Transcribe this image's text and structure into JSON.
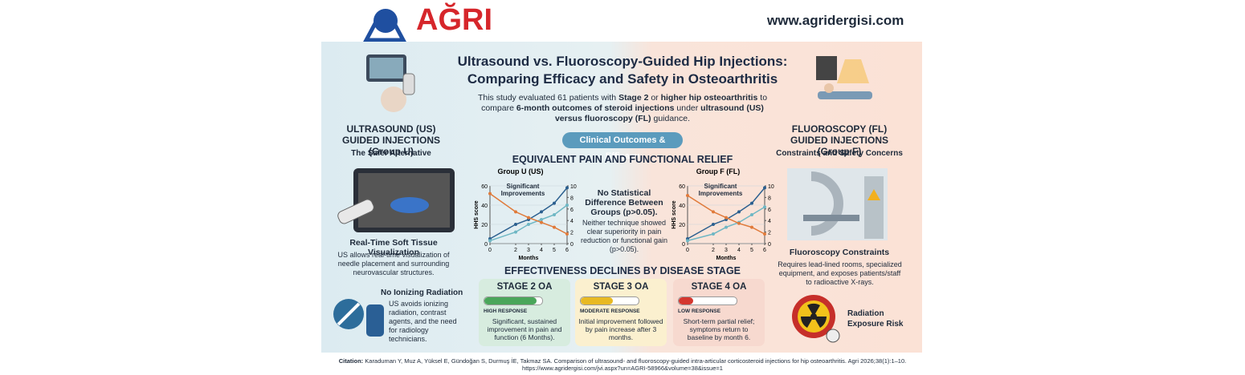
{
  "header": {
    "logo": "AĞRI",
    "url": "www.agridergisi.com"
  },
  "title": [
    "Ultrasound vs. Fluoroscopy-Guided Hip Injections:",
    "Comparing Efficacy and Safety in Osteoarthritis"
  ],
  "intro": [
    "This study evaluated 61 patients with ",
    "Stage 2",
    " or ",
    "higher hip osteoarthritis",
    " to compare ",
    "6-month outcomes of steroid injections",
    " under ",
    "ultrasound (US) versus fluoroscopy (FL)",
    " guidance."
  ],
  "left": {
    "heading": "ULTRASOUND (US) GUIDED INJECTIONS (Group U)",
    "subheading": "The Safer Alternative",
    "feature1": {
      "title": "Real-Time Soft Tissue Visualization",
      "text": "US allows real-time visualization of needle placement and surrounding neurovascular structures."
    },
    "feature2": {
      "title": "No Ionizing Radiation",
      "text": "US avoids ionizing radiation, contrast agents, and the need for radiology technicians."
    }
  },
  "right": {
    "heading": "FLUOROSCOPY (FL) GUIDED INJECTIONS (Group F)",
    "subheading": "Constraints and Safety Concerns",
    "feature1": {
      "title": "Fluoroscopy Constraints",
      "text": "Requires lead-lined rooms, specialized equipment, and exposes patients/staff to radioactive X-rays."
    },
    "feature2": {
      "title": "Radiation Exposure Risk"
    }
  },
  "center": {
    "pill": "Clinical Outcomes & Efficacy",
    "section1": "EQUIVALENT PAIN AND FUNCTIONAL RELIEF",
    "charts": [
      {
        "type": "line",
        "title": "Group U (US)",
        "annotation": "Significant Improvements",
        "y_label": "HHS score",
        "x_label": "Months",
        "x": [
          0,
          2,
          3,
          4,
          5,
          6
        ],
        "xlim": [
          0,
          6
        ],
        "xticks": [
          0,
          2,
          3,
          4,
          5,
          6
        ],
        "ylim": [
          0,
          60
        ],
        "yticks": [
          0,
          20,
          40,
          60
        ],
        "y2lim": [
          0,
          10
        ],
        "y2ticks": [
          0,
          2,
          4,
          6,
          8,
          10
        ],
        "series": [
          {
            "color": "#2b5f8f",
            "values": [
              5,
              20,
              25,
              33,
              42,
              58
            ]
          },
          {
            "color": "#6fb7c4",
            "values": [
              3,
              12,
              20,
              25,
              30,
              40
            ]
          },
          {
            "color": "#e07a3a",
            "values": [
              52,
              33,
              27,
              22,
              17,
              10
            ]
          }
        ]
      },
      {
        "type": "line",
        "title": "Group F (FL)",
        "annotation": "Significant Improvements",
        "y_label": "HHS score",
        "x_label": "Months",
        "x": [
          0,
          2,
          3,
          4,
          5,
          6
        ],
        "xlim": [
          0,
          6
        ],
        "xticks": [
          0,
          2,
          3,
          4,
          5,
          6
        ],
        "ylim": [
          0,
          60
        ],
        "yticks": [
          0,
          20,
          40,
          60
        ],
        "y2lim": [
          0,
          10
        ],
        "y2ticks": [
          0,
          2,
          4,
          6,
          8,
          10
        ],
        "series": [
          {
            "color": "#2b5f8f",
            "values": [
              5,
              20,
              25,
              33,
              42,
              58
            ]
          },
          {
            "color": "#6fb7c4",
            "values": [
              3,
              10,
              17,
              22,
              30,
              38
            ]
          },
          {
            "color": "#e07a3a",
            "values": [
              50,
              33,
              27,
              21,
              17,
              10
            ]
          }
        ]
      }
    ],
    "verdict": "No Statistical Difference Between Groups (p>0.05).",
    "verdict_text": "Neither technique showed clear superiority in pain reduction or functional gain (p>0.05).",
    "section2": "EFFECTIVENESS DECLINES BY DISEASE STAGE",
    "stages": [
      {
        "title": "STAGE 2 OA",
        "response": "HIGH RESPONSE",
        "text": "Significant, sustained improvement in pain and function (6 Months)."
      },
      {
        "title": "STAGE 3 OA",
        "response": "MODERATE RESPONSE",
        "text": "Initial improvement followed by pain increase after 3 months."
      },
      {
        "title": "STAGE 4 OA",
        "response": "LOW RESPONSE",
        "text": "Short-term partial relief; symptoms return to baseline by month 6."
      }
    ]
  },
  "citation": {
    "label": "Citation:",
    "text": "Karaduman Y, Muz A, Yüksel E, Gündoğan S, Durmuş İE, Takmaz SA. Comparison of ultrasound- and fluoroscopy-guided intra-articular corticosteroid injections for hip osteoarthritis. Agri 2026;38(1):1–10.",
    "url": "https://www.agridergisi.com/jvi.aspx?un=AGRI-58966&volume=38&issue=1"
  }
}
